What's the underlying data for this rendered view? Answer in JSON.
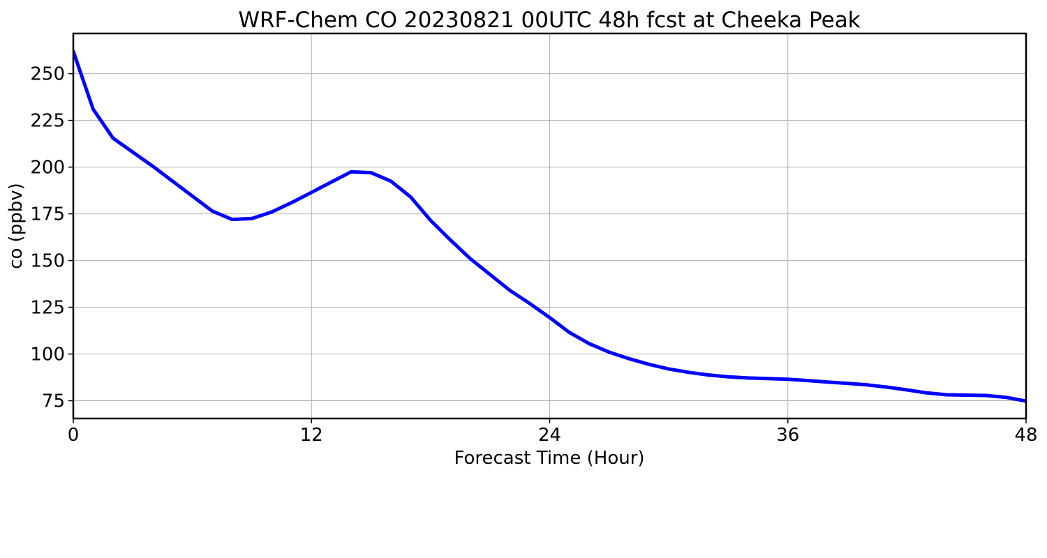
{
  "chart_data": {
    "type": "line",
    "title": "WRF-Chem CO  20230821 00UTC 48h fcst at Cheeka Peak",
    "xlabel": "Forecast Time (Hour)",
    "ylabel": "co  (ppbv)",
    "xlim": [
      0,
      48
    ],
    "ylim": [
      65.5,
      271.5
    ],
    "xticks": [
      0,
      12,
      24,
      36,
      48
    ],
    "yticks": [
      75,
      100,
      125,
      150,
      175,
      200,
      225,
      250
    ],
    "grid": true,
    "legend": "none",
    "series": [
      {
        "color": "#0000ff",
        "x": [
          0,
          1,
          2,
          3,
          4,
          5,
          6,
          7,
          8,
          9,
          10,
          11,
          12,
          13,
          14,
          15,
          16,
          17,
          18,
          19,
          20,
          21,
          22,
          23,
          24,
          25,
          26,
          27,
          28,
          29,
          30,
          31,
          32,
          33,
          34,
          35,
          36,
          37,
          38,
          39,
          40,
          41,
          42,
          43,
          44,
          45,
          46,
          47,
          48
        ],
        "y": [
          262,
          231,
          215.5,
          208,
          200.5,
          192.5,
          184.5,
          176.5,
          172,
          172.5,
          176,
          181,
          186.5,
          192,
          197.5,
          197,
          192.5,
          184,
          171.5,
          161,
          151,
          142.5,
          134,
          127,
          119.5,
          111.5,
          105.5,
          101,
          97.5,
          94.5,
          92,
          90.2,
          88.8,
          87.8,
          87.2,
          86.9,
          86.5,
          85.8,
          85,
          84.3,
          83.5,
          82.3,
          80.8,
          79.2,
          78.2,
          78,
          77.8,
          76.8,
          74.8
        ]
      }
    ]
  }
}
